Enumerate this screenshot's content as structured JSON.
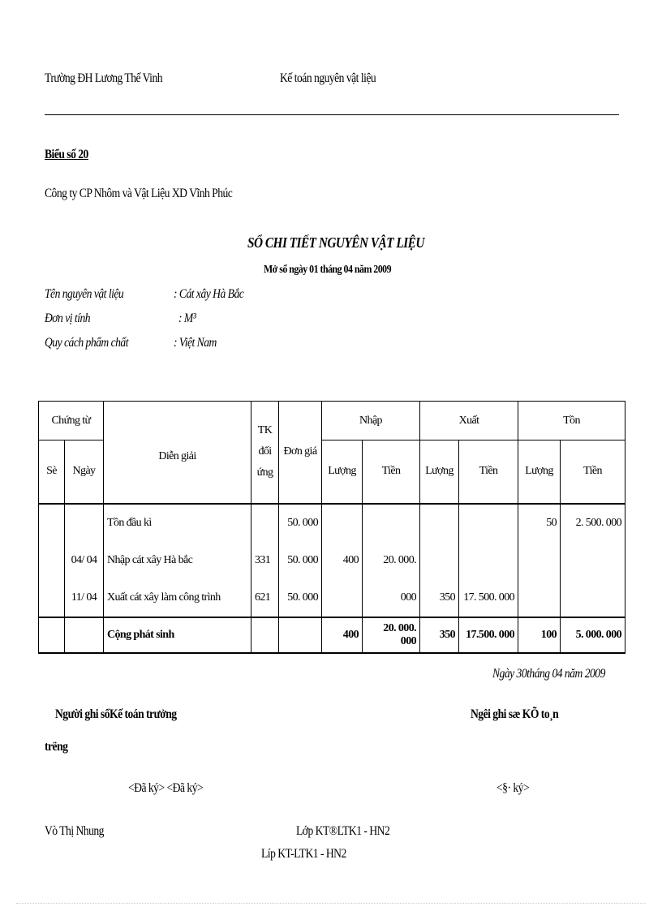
{
  "header": {
    "school": "Trường ĐH Lương Thế Vinh",
    "subject": "Kế toán nguyên vật liệu"
  },
  "form_no": "Biểu số 20",
  "company": "Công ty CP Nhôm và Vật Liệu XD Vĩnh Phúc",
  "title": "SỔ CHI TIẾT NGUYÊN VẬT LIỆU",
  "subtitle": "Mở sổ ngày 01 tháng 04 năm 2009",
  "info": [
    {
      "label": "Tên nguyên vật liệu",
      "value": ": Cát xây  Hà Bắc"
    },
    {
      "label": "Đơn vị tính",
      "value": ": M³"
    },
    {
      "label": "Quy cách phẩm chất",
      "value": ": Việt Nam"
    }
  ],
  "table": {
    "headers": {
      "chung_tu": "Chứng từ",
      "so": "Sè",
      "ngay": "Ngày",
      "dien_giai": "Diễn giải",
      "tk": [
        "TK",
        "đối",
        "ứng"
      ],
      "don_gia": "Đơn giá",
      "nhap": "Nhập",
      "xuat": "Xuất",
      "ton": "Tồn",
      "luong": "Lượng",
      "tien": "Tiền"
    },
    "rows": [
      {
        "so": "",
        "ngay": "",
        "dien_giai": "Tồn đầu kì",
        "tk": "",
        "don_gia": "50. 000",
        "nhap_luong": "",
        "nhap_tien": "",
        "xuat_luong": "",
        "xuat_tien": "",
        "ton_luong": "50",
        "ton_tien": "2. 500. 000"
      },
      {
        "so": "",
        "ngay": "04/ 04",
        "dien_giai": "Nhập cát xây Hà bắc",
        "tk": "331",
        "don_gia": "50. 000",
        "nhap_luong": "400",
        "nhap_tien": "20. 000. 000",
        "xuat_luong": "",
        "xuat_tien": "",
        "ton_luong": "",
        "ton_tien": ""
      },
      {
        "so": "",
        "ngay": "11/ 04",
        "dien_giai": "Xuất cát xây làm công trình",
        "tk": "621",
        "don_gia": "50. 000",
        "nhap_luong": "",
        "nhap_tien": "",
        "xuat_luong": "350",
        "xuat_tien": "17. 500. 000",
        "ton_luong": "",
        "ton_tien": ""
      }
    ],
    "total": {
      "label": "Cộng phát sinh",
      "nhap_luong": "400",
      "nhap_tien": "20. 000. 000",
      "xuat_luong": "350",
      "xuat_tien": "17.500. 000",
      "ton_luong": "100",
      "ton_tien": "5. 000. 000"
    }
  },
  "date_line": "Ngày 30tháng 04 năm 2009",
  "signatures": {
    "left_title": "Người ghi sổKế toán trưởng",
    "left_title_cont": "trëng",
    "right_title": "Ngêi  ghi sæ        KÕ         to¸n",
    "left_signed": "<Đã ký> <Đã ký>",
    "right_signed": "<§· ký>"
  },
  "footer": {
    "author": "Vò Thị Nhung",
    "class1": "Lớp KT®LTK1 - HN2",
    "class2": "Líp KT-LTK1 - HN2"
  }
}
